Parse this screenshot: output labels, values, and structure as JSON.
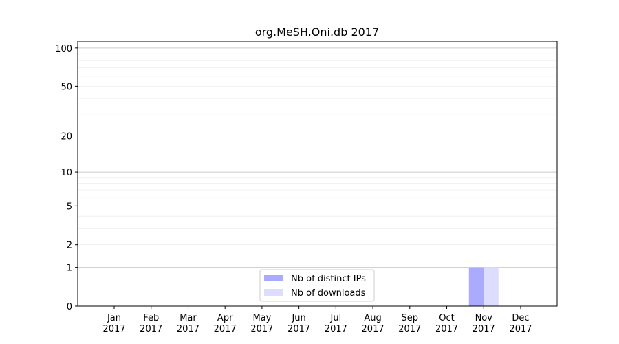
{
  "chart_data": {
    "type": "bar",
    "title": "org.MeSH.Oni.db 2017",
    "xlabel": "",
    "ylabel": "",
    "yscale": "log(1+y)",
    "ylim": [
      0,
      113
    ],
    "yticks": [
      0,
      1,
      2,
      5,
      10,
      20,
      50,
      100
    ],
    "ytick_labels": [
      "0",
      "1",
      "2",
      "5",
      "10",
      "20",
      "50",
      "100"
    ],
    "grid": true,
    "legend_position": "lower-center",
    "categories": [
      "Jan\n2017",
      "Feb\n2017",
      "Mar\n2017",
      "Apr\n2017",
      "May\n2017",
      "Jun\n2017",
      "Jul\n2017",
      "Aug\n2017",
      "Sep\n2017",
      "Oct\n2017",
      "Nov\n2017",
      "Dec\n2017"
    ],
    "series": [
      {
        "name": "Nb of distinct IPs",
        "color": "#aaaaff",
        "values": [
          0,
          0,
          0,
          0,
          0,
          0,
          0,
          0,
          0,
          0,
          1,
          0
        ]
      },
      {
        "name": "Nb of downloads",
        "color": "#ddddff",
        "values": [
          0,
          0,
          0,
          0,
          0,
          0,
          0,
          0,
          0,
          0,
          1,
          0
        ]
      }
    ]
  }
}
